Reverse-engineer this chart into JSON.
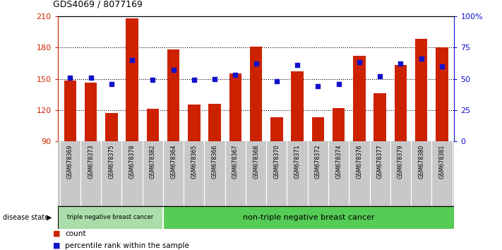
{
  "title": "GDS4069 / 8077169",
  "samples": [
    "GSM678369",
    "GSM678373",
    "GSM678375",
    "GSM678378",
    "GSM678382",
    "GSM678364",
    "GSM678365",
    "GSM678366",
    "GSM678367",
    "GSM678368",
    "GSM678370",
    "GSM678371",
    "GSM678372",
    "GSM678374",
    "GSM678376",
    "GSM678377",
    "GSM678379",
    "GSM678380",
    "GSM678381"
  ],
  "counts": [
    148,
    146,
    117,
    208,
    121,
    178,
    125,
    126,
    155,
    181,
    113,
    157,
    113,
    122,
    172,
    136,
    163,
    188,
    180
  ],
  "percentiles": [
    51,
    51,
    46,
    65,
    49,
    57,
    49,
    50,
    53,
    62,
    48,
    61,
    44,
    46,
    63,
    52,
    62,
    66,
    60
  ],
  "ymin": 90,
  "ymax": 210,
  "yticks": [
    90,
    120,
    150,
    180,
    210
  ],
  "dotted_lines": [
    120,
    150,
    180
  ],
  "right_yticks": [
    0,
    25,
    50,
    75,
    100
  ],
  "right_yticklabels": [
    "0",
    "25",
    "50",
    "75",
    "100%"
  ],
  "group1_count": 5,
  "group1_label": "triple negative breast cancer",
  "group2_label": "non-triple negative breast cancer",
  "bar_color": "#cc2200",
  "dot_color": "#1111cc",
  "bar_bottom": 90,
  "legend_count_label": "count",
  "legend_percentile_label": "percentile rank within the sample",
  "disease_state_label": "disease state",
  "left_color": "#cc2200",
  "right_color": "#1111cc",
  "bg_plot": "#ffffff",
  "bg_tick_area": "#c8c8c8",
  "group1_bg": "#aaddaa",
  "group2_bg": "#55cc55",
  "fig_bg": "#ffffff"
}
